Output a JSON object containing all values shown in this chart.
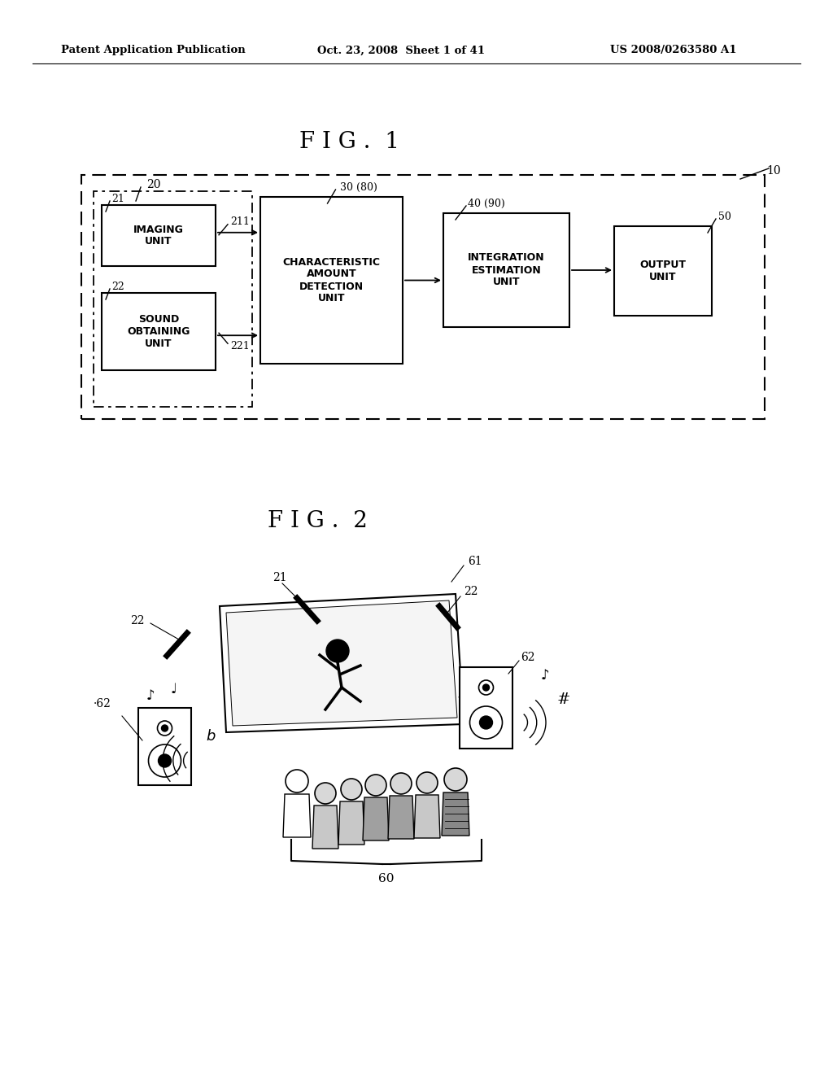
{
  "bg_color": "#ffffff",
  "header_left": "Patent Application Publication",
  "header_mid": "Oct. 23, 2008  Sheet 1 of 41",
  "header_right": "US 2008/0263580 A1",
  "fig1_title": "F I G .  1",
  "fig2_title": "F I G .  2",
  "label_10": "10",
  "label_20": "20",
  "label_21": "21",
  "label_22": "22",
  "label_211": "211",
  "label_221": "221",
  "label_30_80": "30 (80)",
  "label_40_90": "40 (90)",
  "label_50": "50",
  "label_60": "60",
  "label_61": "61",
  "label_62a": "62",
  "label_62b": "62",
  "label_22a": "22",
  "label_22b": "22",
  "box_imaging": "IMAGING\nUNIT",
  "box_sound": "SOUND\nOBTAINING\nUNIT",
  "box_char": "CHARACTERISTIC\nAMOUNT\nDETECTION\nUNIT",
  "box_integ": "INTEGRATION\nESTIMATION\nUNIT",
  "box_output": "OUTPUT\nUNIT"
}
